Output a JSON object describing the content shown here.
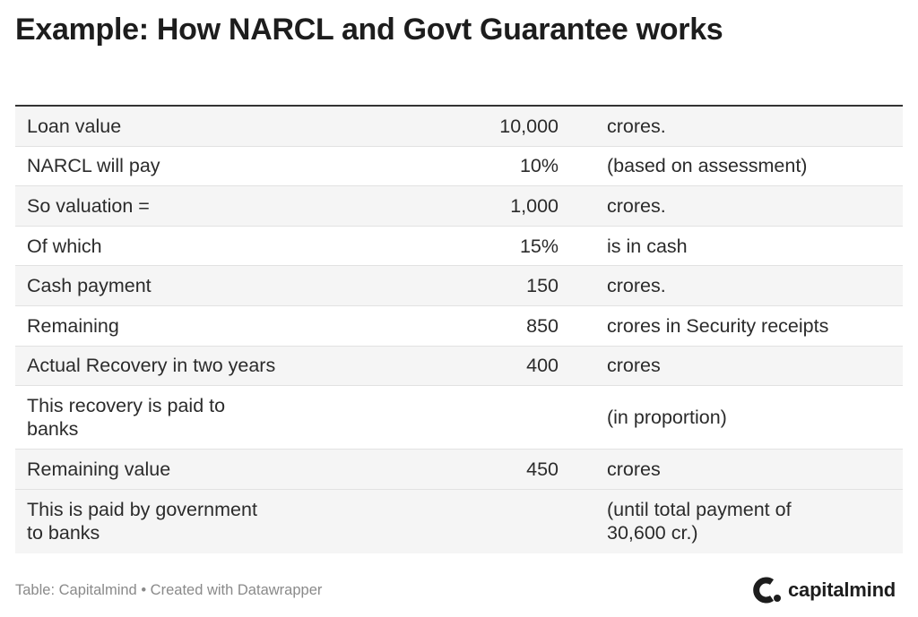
{
  "title": "Example: How NARCL and Govt Guarantee works",
  "chart_data": {
    "type": "table",
    "title": "Example: How NARCL and Govt Guarantee works",
    "rows": [
      {
        "label": "Loan value",
        "value": "10,000",
        "note": "crores."
      },
      {
        "label": "NARCL will pay",
        "value": "10%",
        "note": "(based on assessment)"
      },
      {
        "label": "So valuation =",
        "value": "1,000",
        "note": "crores."
      },
      {
        "label": "Of which",
        "value": "15%",
        "note": "is in cash"
      },
      {
        "label": "Cash payment",
        "value": "150",
        "note": "crores."
      },
      {
        "label": "Remaining",
        "value": "850",
        "note": "crores in Security receipts"
      },
      {
        "label": "Actual Recovery in two years",
        "value": "400",
        "note": "crores"
      },
      {
        "label": "This recovery is paid to banks",
        "value": "",
        "note": "(in proportion)"
      },
      {
        "label": "Remaining value",
        "value": "450",
        "note": "crores"
      },
      {
        "label": "This is paid by government to banks",
        "value": "",
        "note": "(until total payment of 30,600 cr.)"
      }
    ]
  },
  "footer": {
    "source": "Table: Capitalmind • Created with Datawrapper"
  },
  "brand": {
    "name": "capitalmind",
    "icon": "capitalmind-logo-icon",
    "color": "#1d1d1d"
  },
  "colors": {
    "row_shade": "#f5f5f5",
    "rule": "#333333"
  }
}
